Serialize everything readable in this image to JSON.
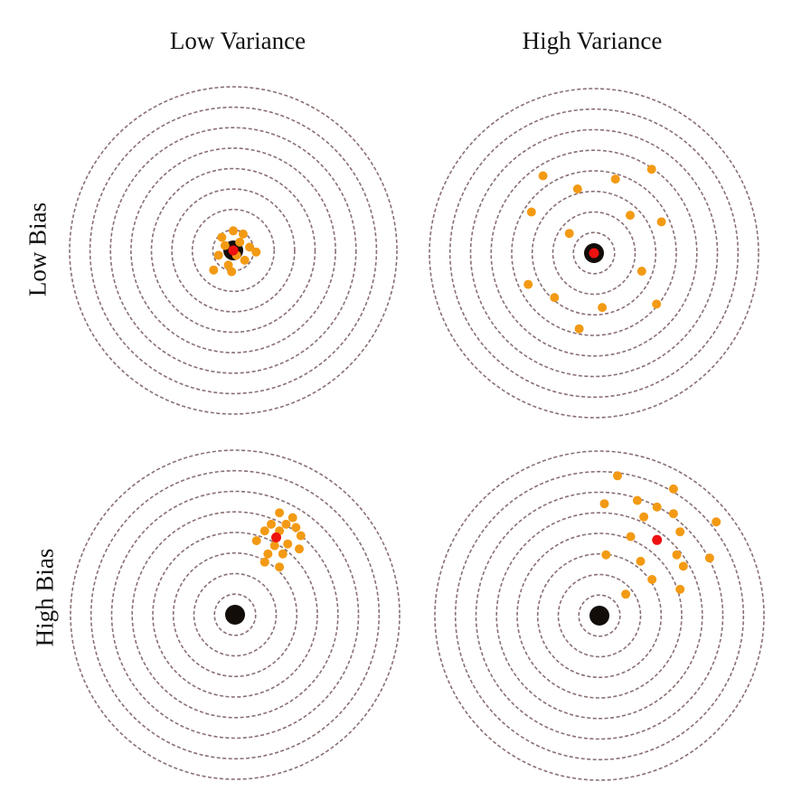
{
  "labels": {
    "col_low_variance": "Low Variance",
    "col_high_variance": "High Variance",
    "row_low_bias": "Low Bias",
    "row_high_bias": "High Bias"
  },
  "colors": {
    "ring": "#8a6f72",
    "bullseye": "#120d09",
    "shot": "#f39a14",
    "mean": "#ee1111"
  },
  "rings_per_target": 8,
  "targets": [
    {
      "name": "low-bias-low-variance",
      "mean": [
        0.0,
        0.0
      ],
      "shots": [
        [
          -0.07,
          -0.08
        ],
        [
          0.06,
          -0.1
        ],
        [
          0.1,
          -0.02
        ],
        [
          0.07,
          0.06
        ],
        [
          -0.03,
          0.09
        ],
        [
          -0.09,
          0.03
        ],
        [
          0.02,
          0.03
        ],
        [
          -0.05,
          -0.03
        ],
        [
          0.04,
          -0.05
        ],
        [
          -0.01,
          0.13
        ],
        [
          0.14,
          0.01
        ],
        [
          -0.12,
          0.12
        ],
        [
          0.0,
          -0.12
        ]
      ]
    },
    {
      "name": "low-bias-high-variance",
      "mean": [
        0.0,
        0.0
      ],
      "shots": [
        [
          -0.31,
          -0.47
        ],
        [
          -0.1,
          -0.39
        ],
        [
          0.13,
          -0.45
        ],
        [
          0.35,
          -0.51
        ],
        [
          -0.38,
          -0.25
        ],
        [
          0.22,
          -0.23
        ],
        [
          0.41,
          -0.19
        ],
        [
          -0.15,
          -0.12
        ],
        [
          0.29,
          0.11
        ],
        [
          -0.4,
          0.19
        ],
        [
          -0.24,
          0.27
        ],
        [
          0.05,
          0.33
        ],
        [
          0.38,
          0.31
        ],
        [
          -0.09,
          0.46
        ]
      ]
    },
    {
      "name": "high-bias-low-variance",
      "mean": [
        0.25,
        -0.47
      ],
      "shots": [
        [
          0.27,
          -0.62
        ],
        [
          0.35,
          -0.59
        ],
        [
          0.22,
          -0.55
        ],
        [
          0.31,
          -0.55
        ],
        [
          0.37,
          -0.53
        ],
        [
          0.18,
          -0.51
        ],
        [
          0.27,
          -0.51
        ],
        [
          0.4,
          -0.48
        ],
        [
          0.13,
          -0.45
        ],
        [
          0.24,
          -0.42
        ],
        [
          0.32,
          -0.43
        ],
        [
          0.39,
          -0.4
        ],
        [
          0.2,
          -0.37
        ],
        [
          0.29,
          -0.37
        ],
        [
          0.18,
          -0.32
        ],
        [
          0.27,
          -0.29
        ]
      ]
    },
    {
      "name": "high-bias-high-variance",
      "mean": [
        0.35,
        -0.46
      ],
      "shots": [
        [
          0.11,
          -0.85
        ],
        [
          0.45,
          -0.77
        ],
        [
          0.23,
          -0.7
        ],
        [
          0.03,
          -0.68
        ],
        [
          0.35,
          -0.66
        ],
        [
          0.45,
          -0.62
        ],
        [
          0.27,
          -0.6
        ],
        [
          0.71,
          -0.57
        ],
        [
          0.49,
          -0.51
        ],
        [
          0.19,
          -0.48
        ],
        [
          0.47,
          -0.37
        ],
        [
          0.04,
          -0.37
        ],
        [
          0.67,
          -0.35
        ],
        [
          0.25,
          -0.33
        ],
        [
          0.51,
          -0.3
        ],
        [
          0.32,
          -0.22
        ],
        [
          0.49,
          -0.16
        ],
        [
          0.16,
          -0.13
        ]
      ]
    }
  ]
}
